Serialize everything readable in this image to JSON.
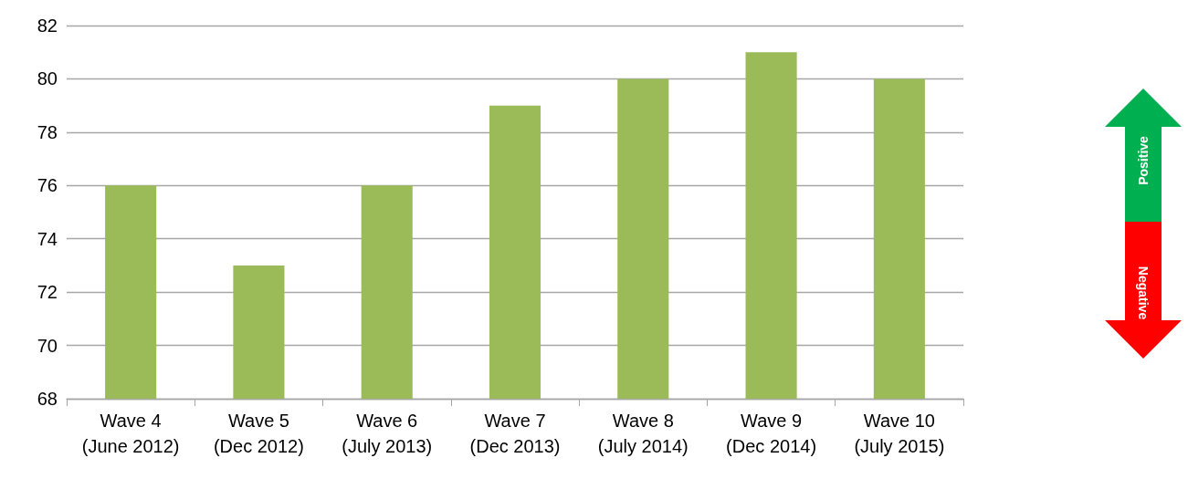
{
  "chart_data": {
    "type": "bar",
    "categories": [
      "Wave 4\n(June 2012)",
      "Wave 5\n(Dec 2012)",
      "Wave 6\n(July 2013)",
      "Wave 7\n(Dec 2013)",
      "Wave 8\n(July 2014)",
      "Wave 9\n(Dec 2014)",
      "Wave 10\n(July 2015)"
    ],
    "values": [
      76,
      73,
      76,
      79,
      80,
      81,
      80
    ],
    "color": "#9bbb59",
    "ylim": [
      68,
      82
    ],
    "yticks": [
      68,
      70,
      72,
      74,
      76,
      78,
      80,
      82
    ],
    "grid": "y",
    "annotations": [
      "Positive",
      "Negative"
    ]
  }
}
